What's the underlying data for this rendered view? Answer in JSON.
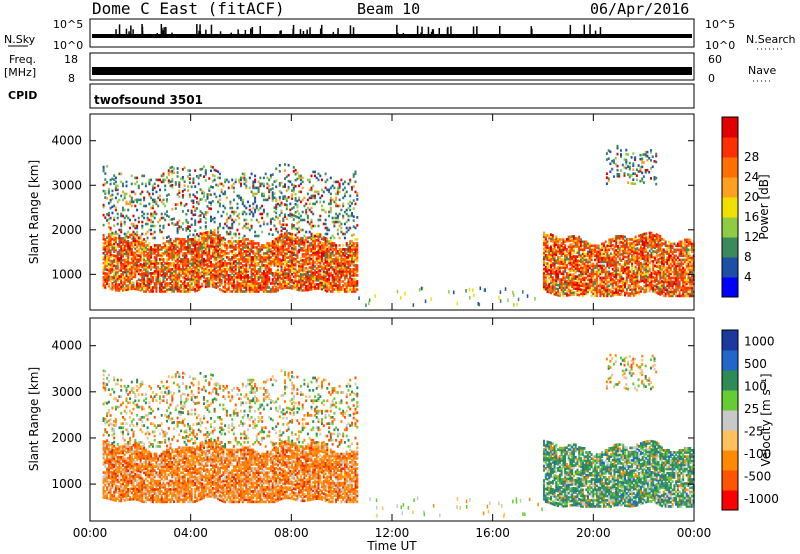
{
  "header": {
    "title": "Dome C East (fitACF)",
    "beam": "Beam 10",
    "date": "06/Apr/2016"
  },
  "top_panels": {
    "nsky_label": "N.Sky",
    "nsky_ticks": [
      "10^5",
      "10^0"
    ],
    "nsearch_label": "N.Search",
    "nsearch_ticks": [
      "10^5",
      "10^0"
    ],
    "freq_label": "Freq.",
    "freq_unit": "[MHz]",
    "freq_ticks": [
      "18",
      "8"
    ],
    "nave_label": "Nave",
    "nave_ticks": [
      "60",
      "0"
    ],
    "cpid_label": "CPID",
    "cpid_value": "twofsound 3501"
  },
  "colors": {
    "power_scale": [
      "#0000ff",
      "#1d4fa6",
      "#3a8a5e",
      "#8fcc44",
      "#f0e000",
      "#ffa020",
      "#ff7000",
      "#ff3000",
      "#e00000"
    ],
    "velocity_scale": [
      "#ff0000",
      "#ff5500",
      "#ff8a00",
      "#ffc060",
      "#c8c8c8",
      "#66cc33",
      "#2e8b57",
      "#2266cc",
      "#1a3aa0"
    ]
  },
  "chart_data": [
    {
      "type": "heatmap",
      "name": "power",
      "xlabel": "Time UT",
      "ylabel": "Slant Range [km]",
      "x_ticks": [
        "00:00",
        "04:00",
        "08:00",
        "12:00",
        "16:00",
        "20:00",
        "00:00"
      ],
      "y_ticks": [
        "1000",
        "2000",
        "3000",
        "4000"
      ],
      "xlim_hours": [
        0,
        24
      ],
      "ylim_km": [
        200,
        4600
      ],
      "colorbar_label": "Power [dB]",
      "colorbar_ticks": [
        "4",
        "8",
        "12",
        "16",
        "20",
        "24",
        "28"
      ],
      "colorbar_range": [
        0,
        30
      ],
      "regions": [
        {
          "t0": 0.5,
          "t1": 10.6,
          "r0": 600,
          "r1": 1800,
          "level": "high"
        },
        {
          "t0": 0.5,
          "t1": 10.6,
          "r0": 1800,
          "r1": 3300,
          "level": "low"
        },
        {
          "t0": 18.0,
          "t1": 24.0,
          "r0": 500,
          "r1": 1800,
          "level": "high"
        },
        {
          "t0": 20.5,
          "t1": 22.5,
          "r0": 3000,
          "r1": 3700,
          "level": "low"
        }
      ]
    },
    {
      "type": "heatmap",
      "name": "velocity",
      "xlabel": "Time UT",
      "ylabel": "Slant Range [km]",
      "x_ticks": [
        "00:00",
        "04:00",
        "08:00",
        "12:00",
        "16:00",
        "20:00",
        "00:00"
      ],
      "y_ticks": [
        "1000",
        "2000",
        "3000",
        "4000"
      ],
      "xlim_hours": [
        0,
        24
      ],
      "ylim_km": [
        200,
        4600
      ],
      "colorbar_label": "Velocity [m s⁻¹]",
      "colorbar_ticks": [
        "1000",
        "500",
        "100",
        "25",
        "-25",
        "-100",
        "-500",
        "-1000"
      ],
      "regions": [
        {
          "t0": 0.5,
          "t1": 10.6,
          "r0": 600,
          "r1": 1800,
          "level": "negative"
        },
        {
          "t0": 0.5,
          "t1": 10.6,
          "r0": 1800,
          "r1": 3300,
          "level": "mixed"
        },
        {
          "t0": 18.0,
          "t1": 24.0,
          "r0": 500,
          "r1": 1800,
          "level": "positive"
        },
        {
          "t0": 20.5,
          "t1": 22.5,
          "r0": 3000,
          "r1": 3700,
          "level": "mixed"
        }
      ]
    }
  ]
}
